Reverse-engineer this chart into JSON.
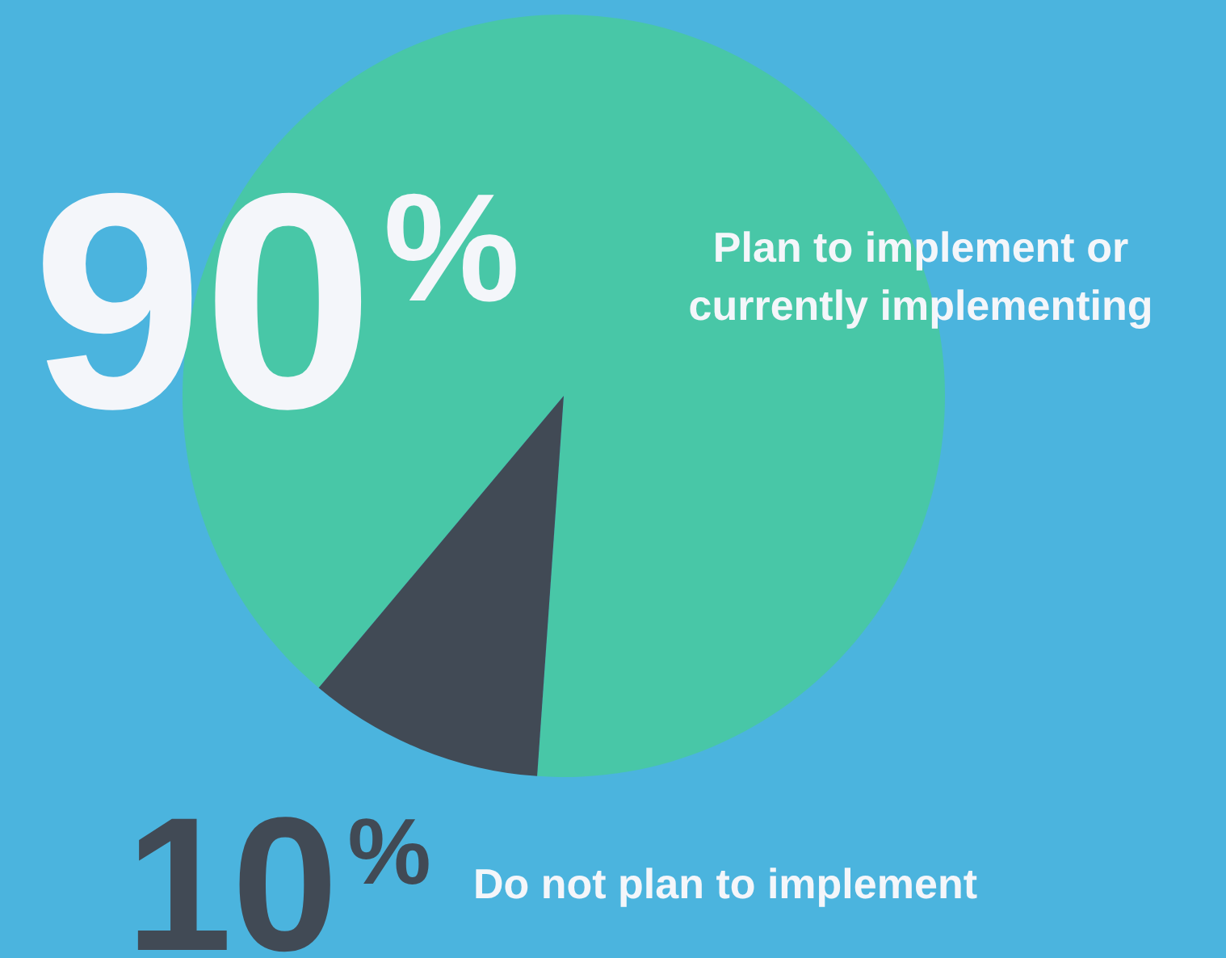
{
  "chart_data": {
    "type": "pie",
    "categories": [
      "Plan to implement or currently implementing",
      "Do not plan to implement"
    ],
    "values": [
      90,
      10
    ],
    "colors": [
      "#48c7a7",
      "#414a55"
    ],
    "value_labels": [
      "90$^{%}$",
      "10$^{%}$"
    ]
  }
}
